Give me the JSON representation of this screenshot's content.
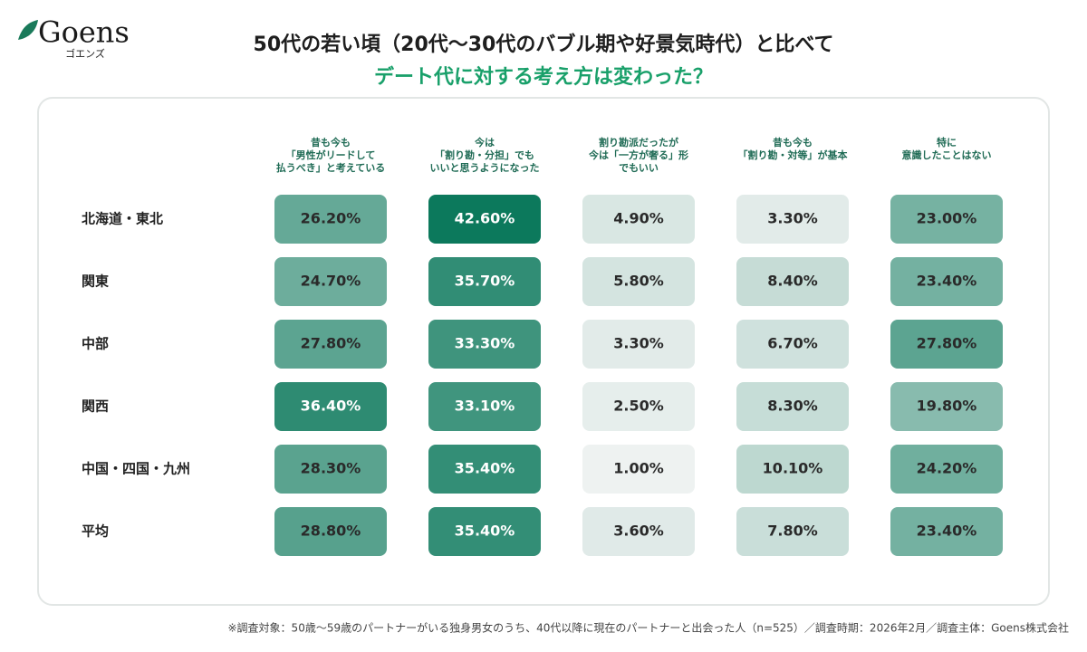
{
  "chart_data": {
    "type": "heatmap",
    "brand": "Goens",
    "brand_sub": "ゴエンズ",
    "title": "50代の若い頃（20代～30代のバブル期や好景気時代）と比べて",
    "subtitle": "デート代に対する考え方は変わった？",
    "columns": [
      [
        "昔も今も",
        "「男性がリードして",
        "払うべき」と考えている"
      ],
      [
        "今は",
        "「割り勘・分担」でも",
        "いいと思うようになった"
      ],
      [
        "割り勘派だったが",
        "今は「一方が奢る」形",
        "でもいい"
      ],
      [
        "昔も今も",
        "「割り勘・対等」が基本"
      ],
      [
        "特に",
        "意識したことはない"
      ]
    ],
    "rows": [
      "北海道・東北",
      "関東",
      "中部",
      "関西",
      "中国・四国・九州",
      "平均"
    ],
    "values": [
      [
        26.2,
        42.6,
        4.9,
        3.3,
        23.0
      ],
      [
        24.7,
        35.7,
        5.8,
        8.4,
        23.4
      ],
      [
        27.8,
        33.3,
        3.3,
        6.7,
        27.8
      ],
      [
        36.4,
        33.1,
        2.5,
        8.3,
        19.8
      ],
      [
        28.3,
        35.4,
        1.0,
        10.1,
        24.2
      ],
      [
        28.8,
        35.4,
        3.6,
        7.8,
        23.4
      ]
    ],
    "value_labels": [
      [
        "26.20%",
        "42.60%",
        "4.90%",
        "3.30%",
        "23.00%"
      ],
      [
        "24.70%",
        "35.70%",
        "5.80%",
        "8.40%",
        "23.40%"
      ],
      [
        "27.80%",
        "33.30%",
        "3.30%",
        "6.70%",
        "27.80%"
      ],
      [
        "36.40%",
        "33.10%",
        "2.50%",
        "8.30%",
        "19.80%"
      ],
      [
        "28.30%",
        "35.40%",
        "1.00%",
        "10.10%",
        "24.20%"
      ],
      [
        "28.80%",
        "35.40%",
        "3.60%",
        "7.80%",
        "23.40%"
      ]
    ],
    "color_scale": [
      "#eef2f1",
      "#0c795c"
    ],
    "footnote": "※調査対象：50歳～59歳のパートナーがいる独身男女のうち、40代以降に現在のパートナーと出会った人（n=525）／調査時期：2026年2月／調査主体：Goens株式会社"
  }
}
